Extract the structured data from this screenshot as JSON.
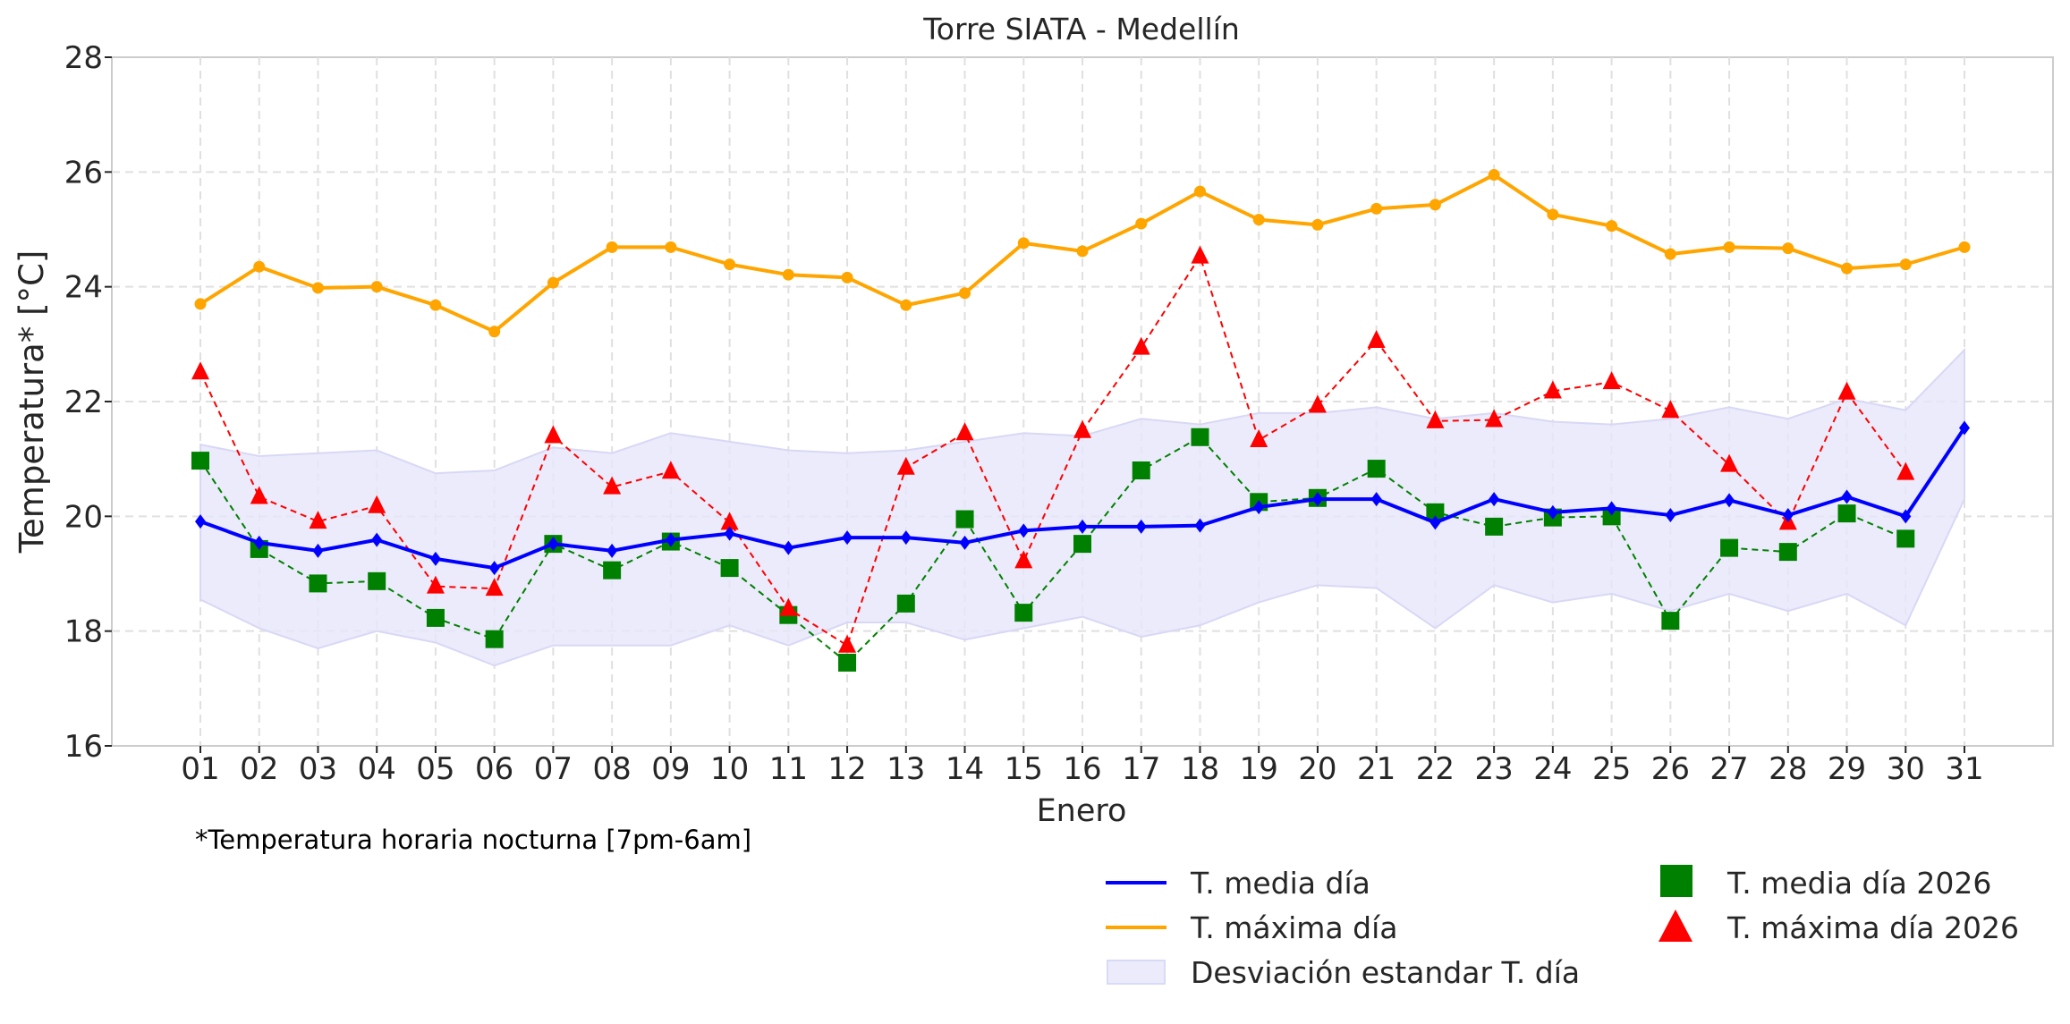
{
  "chart_data": {
    "type": "line",
    "title": "Torre SIATA - Medellín",
    "xlabel": "Enero",
    "ylabel": "Temperatura* [°C]",
    "ylim": [
      16,
      28
    ],
    "yticks": [
      "16",
      "18",
      "20",
      "22",
      "24",
      "26",
      "28"
    ],
    "grid": true,
    "categories": [
      "01",
      "02",
      "03",
      "04",
      "05",
      "06",
      "07",
      "08",
      "09",
      "10",
      "11",
      "12",
      "13",
      "14",
      "15",
      "16",
      "17",
      "18",
      "19",
      "20",
      "21",
      "22",
      "23",
      "24",
      "25",
      "26",
      "27",
      "28",
      "29",
      "30",
      "31"
    ],
    "series": [
      {
        "name": "T. media día",
        "color": "#0000ff",
        "style": "solid-line-diamond",
        "values": [
          19.91,
          19.54,
          19.4,
          19.59,
          19.26,
          19.1,
          19.52,
          19.4,
          19.59,
          19.7,
          19.45,
          19.63,
          19.63,
          19.54,
          19.75,
          19.82,
          19.82,
          19.84,
          20.16,
          20.3,
          20.3,
          19.89,
          20.3,
          20.07,
          20.14,
          20.02,
          20.28,
          20.02,
          20.34,
          20.0,
          21.54
        ]
      },
      {
        "name": "T. máxima día",
        "color": "#ffa500",
        "style": "solid-line-circle",
        "values": [
          23.7,
          24.35,
          23.98,
          24.0,
          23.68,
          23.22,
          24.07,
          24.69,
          24.69,
          24.39,
          24.21,
          24.16,
          23.68,
          23.89,
          24.76,
          24.62,
          25.1,
          25.66,
          25.17,
          25.08,
          25.36,
          25.43,
          25.95,
          25.26,
          25.06,
          24.57,
          24.69,
          24.67,
          24.32,
          24.39,
          24.69
        ]
      },
      {
        "name": "T. media día 2026",
        "color": "#008000",
        "style": "dashed-line-square",
        "values": [
          20.97,
          19.43,
          18.83,
          18.87,
          18.23,
          17.86,
          19.52,
          19.06,
          19.56,
          19.1,
          18.28,
          17.45,
          18.48,
          19.95,
          18.32,
          19.52,
          20.8,
          21.38,
          20.25,
          20.32,
          20.83,
          20.07,
          19.82,
          19.98,
          20.0,
          18.18,
          19.45,
          19.38,
          20.05,
          19.61,
          null
        ]
      },
      {
        "name": "T. máxima día 2026",
        "color": "#ff0000",
        "style": "dashed-line-triangle",
        "values": [
          22.51,
          20.34,
          19.91,
          20.18,
          18.78,
          18.74,
          21.4,
          20.51,
          20.78,
          19.89,
          18.39,
          17.75,
          20.85,
          21.45,
          19.22,
          21.49,
          22.94,
          24.53,
          21.33,
          21.93,
          23.06,
          21.66,
          21.68,
          22.18,
          22.34,
          21.84,
          20.9,
          19.89,
          22.16,
          20.76,
          null
        ]
      }
    ],
    "band": {
      "name": "Desviación estandar T. día",
      "color": "#e6e6fa",
      "upper": [
        21.25,
        21.05,
        21.1,
        21.15,
        20.75,
        20.8,
        21.2,
        21.1,
        21.45,
        21.3,
        21.15,
        21.1,
        21.15,
        21.3,
        21.45,
        21.4,
        21.7,
        21.6,
        21.8,
        21.8,
        21.9,
        21.7,
        21.8,
        21.65,
        21.6,
        21.7,
        21.9,
        21.7,
        22.05,
        21.85,
        22.9
      ],
      "lower": [
        18.55,
        18.05,
        17.7,
        18.0,
        17.8,
        17.4,
        17.75,
        17.75,
        17.75,
        18.1,
        17.75,
        18.15,
        18.15,
        17.85,
        18.05,
        18.25,
        17.9,
        18.1,
        18.5,
        18.8,
        18.75,
        18.05,
        18.8,
        18.5,
        18.65,
        18.35,
        18.65,
        18.35,
        18.65,
        18.1,
        20.3
      ]
    },
    "legend_position": "bottom-right",
    "footnote": "*Temperatura horaria nocturna [7pm-6am]"
  },
  "legend": {
    "items": [
      {
        "label": "T. media día",
        "kind": "line",
        "color": "#0000ff"
      },
      {
        "label": "T. máxima día",
        "kind": "line",
        "color": "#ffa500"
      },
      {
        "label": "Desviación estandar T. día",
        "kind": "fill",
        "color": "#e6e6fa"
      },
      {
        "label": "T. media día 2026",
        "kind": "square",
        "color": "#008000"
      },
      {
        "label": "T. máxima día 2026",
        "kind": "triangle",
        "color": "#ff0000"
      }
    ]
  }
}
